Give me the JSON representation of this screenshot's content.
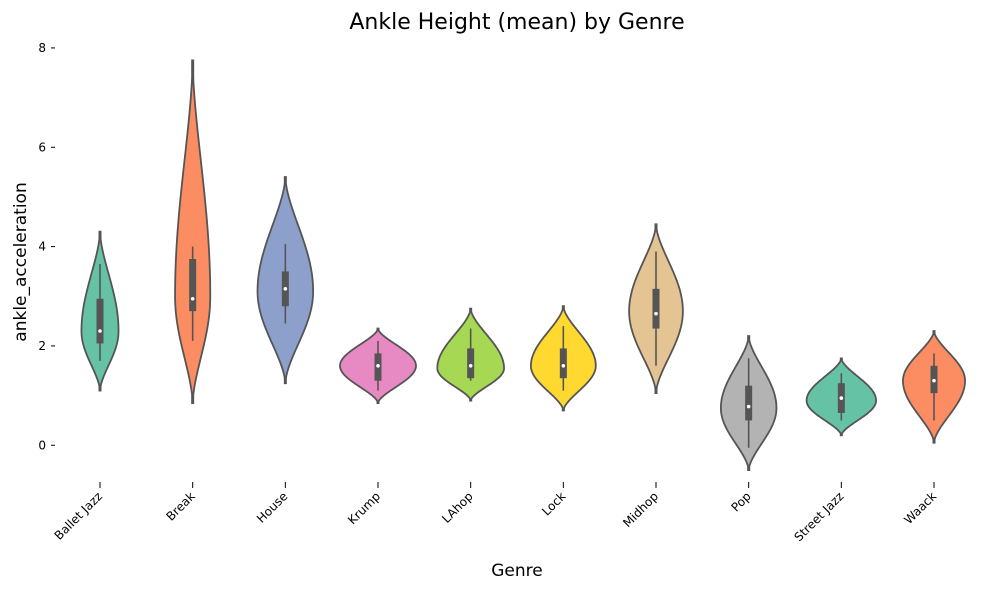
{
  "chart_data": {
    "type": "violin",
    "title": "Ankle Height (mean) by Genre",
    "xlabel": "Genre",
    "ylabel": "ankle_acceleration",
    "ylim": [
      -0.8,
      8.2
    ],
    "yticks": [
      0,
      2,
      4,
      6,
      8
    ],
    "grid": false,
    "categories": [
      "Ballet Jazz",
      "Break",
      "House",
      "Krump",
      "LAhop",
      "Lock",
      "Midhop",
      "Pop",
      "Street Jazz",
      "Waack"
    ],
    "colors": [
      "#66c2a5",
      "#fc8d62",
      "#8da0cb",
      "#e78ac3",
      "#a6d854",
      "#ffd92f",
      "#e5c494",
      "#b3b3b3",
      "#66c2a5",
      "#fc8d62"
    ],
    "violins": [
      {
        "category": "Ballet Jazz",
        "min": 1.1,
        "max": 4.3,
        "q1": 2.05,
        "median": 2.3,
        "q3": 2.95,
        "whisker_low": 1.7,
        "whisker_high": 3.65,
        "mode": 2.3,
        "max_half_width": 0.4
      },
      {
        "category": "Break",
        "min": 0.85,
        "max": 7.75,
        "q1": 2.7,
        "median": 2.95,
        "q3": 3.75,
        "whisker_low": 2.1,
        "whisker_high": 4.0,
        "mode": 3.0,
        "max_half_width": 0.38
      },
      {
        "category": "House",
        "min": 1.25,
        "max": 5.4,
        "q1": 2.8,
        "median": 3.15,
        "q3": 3.5,
        "whisker_low": 2.45,
        "whisker_high": 4.05,
        "mode": 3.1,
        "max_half_width": 0.6
      },
      {
        "category": "Krump",
        "min": 0.85,
        "max": 2.35,
        "q1": 1.3,
        "median": 1.6,
        "q3": 1.85,
        "whisker_low": 1.1,
        "whisker_high": 2.1,
        "mode": 1.6,
        "max_half_width": 0.82
      },
      {
        "category": "LAhop",
        "min": 0.9,
        "max": 2.75,
        "q1": 1.35,
        "median": 1.6,
        "q3": 1.95,
        "whisker_low": 1.3,
        "whisker_high": 2.35,
        "mode": 1.55,
        "max_half_width": 0.72
      },
      {
        "category": "Lock",
        "min": 0.7,
        "max": 2.8,
        "q1": 1.35,
        "median": 1.6,
        "q3": 1.95,
        "whisker_low": 1.1,
        "whisker_high": 2.4,
        "mode": 1.6,
        "max_half_width": 0.7
      },
      {
        "category": "Midhop",
        "min": 1.05,
        "max": 4.45,
        "q1": 2.35,
        "median": 2.65,
        "q3": 3.15,
        "whisker_low": 1.6,
        "whisker_high": 3.9,
        "mode": 2.7,
        "max_half_width": 0.58
      },
      {
        "category": "Pop",
        "min": -0.5,
        "max": 2.2,
        "q1": 0.5,
        "median": 0.78,
        "q3": 1.2,
        "whisker_low": -0.05,
        "whisker_high": 1.75,
        "mode": 0.75,
        "max_half_width": 0.6
      },
      {
        "category": "Street Jazz",
        "min": 0.2,
        "max": 1.75,
        "q1": 0.65,
        "median": 0.95,
        "q3": 1.25,
        "whisker_low": 0.5,
        "whisker_high": 1.45,
        "mode": 0.9,
        "max_half_width": 0.75
      },
      {
        "category": "Waack",
        "min": 0.05,
        "max": 2.3,
        "q1": 1.05,
        "median": 1.3,
        "q3": 1.6,
        "whisker_low": 0.5,
        "whisker_high": 1.85,
        "mode": 1.3,
        "max_half_width": 0.67
      }
    ]
  }
}
